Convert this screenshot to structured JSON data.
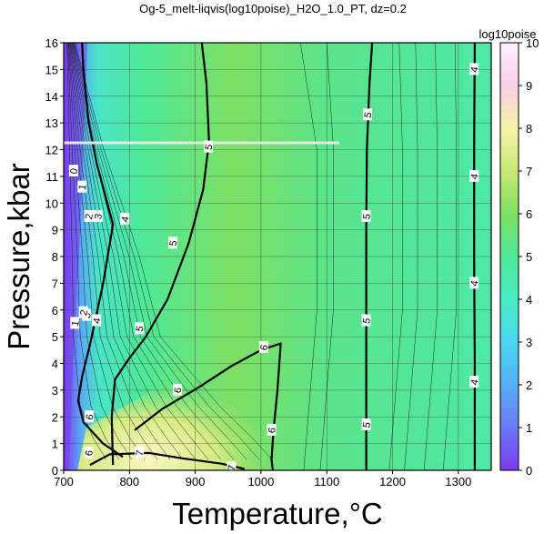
{
  "chart_data": {
    "type": "heatmap",
    "title": "Og-5_melt-liqvis(log10poise)_H2O_1.0_PT, dz=0.2",
    "xlabel": "Temperature,°C",
    "ylabel": "Pressure,kbar",
    "xlim": [
      700,
      1350
    ],
    "ylim": [
      0,
      16
    ],
    "x_ticks": [
      700,
      800,
      900,
      1000,
      1100,
      1200,
      1300
    ],
    "y_ticks": [
      0,
      1,
      2,
      3,
      4,
      5,
      6,
      7,
      8,
      9,
      10,
      11,
      12,
      13,
      14,
      15,
      16
    ],
    "grid": true,
    "colorbar": {
      "label": "log10poise",
      "range": [
        0,
        10
      ],
      "ticks": [
        0,
        1,
        2,
        3,
        4,
        5,
        6,
        7,
        8,
        9,
        10
      ],
      "stops": [
        {
          "value": 0,
          "color": "#7a3cf0"
        },
        {
          "value": 1,
          "color": "#6a7af6"
        },
        {
          "value": 2,
          "color": "#58aef8"
        },
        {
          "value": 3,
          "color": "#4ad6f0"
        },
        {
          "value": 4,
          "color": "#48ecc4"
        },
        {
          "value": 5,
          "color": "#4ee89a"
        },
        {
          "value": 6,
          "color": "#7ee062"
        },
        {
          "value": 7,
          "color": "#c8e878"
        },
        {
          "value": 8,
          "color": "#f6f2aa"
        },
        {
          "value": 9,
          "color": "#f8d0e6"
        },
        {
          "value": 10,
          "color": "#fff0fa"
        }
      ]
    },
    "major_contours": [
      {
        "level": 4,
        "points": [
          [
            1325,
            0
          ],
          [
            1325,
            4
          ],
          [
            1324,
            8
          ],
          [
            1324,
            12
          ],
          [
            1325,
            16
          ]
        ]
      },
      {
        "level": 5,
        "points": [
          [
            1160,
            0
          ],
          [
            1160,
            5
          ],
          [
            1160,
            9
          ],
          [
            1161,
            12
          ],
          [
            1165,
            14.5
          ],
          [
            1169,
            16
          ]
        ]
      },
      {
        "level": 5,
        "points": [
          [
            775,
            0.2
          ],
          [
            773,
            2
          ],
          [
            778,
            3.4
          ],
          [
            800,
            4.2
          ],
          [
            825,
            5
          ],
          [
            858,
            6.4
          ],
          [
            890,
            8.5
          ],
          [
            912,
            10.5
          ],
          [
            921,
            12.3
          ],
          [
            917,
            14.5
          ],
          [
            910,
            16
          ]
        ]
      },
      {
        "level": 6,
        "points": [
          [
            808,
            1.5
          ],
          [
            850,
            2.3
          ],
          [
            905,
            3.1
          ],
          [
            955,
            3.9
          ],
          [
            1000,
            4.5
          ],
          [
            1030,
            4.75
          ],
          [
            1025,
            3
          ],
          [
            1019,
            1.5
          ],
          [
            1016,
            0.4
          ],
          [
            1018,
            0
          ]
        ]
      },
      {
        "level": 6,
        "points": [
          [
            728,
            16
          ],
          [
            730,
            15
          ],
          [
            738,
            13
          ],
          [
            750,
            11.5
          ],
          [
            775,
            9.2
          ],
          [
            760,
            7
          ],
          [
            740,
            4.7
          ],
          [
            728,
            3.5
          ],
          [
            722,
            2.6
          ],
          [
            730,
            1.8
          ],
          [
            760,
            1
          ],
          [
            790,
            0.5
          ]
        ]
      },
      {
        "level": 7,
        "points": [
          [
            740,
            0.2
          ],
          [
            770,
            0.6
          ],
          [
            830,
            0.65
          ],
          [
            880,
            0.45
          ],
          [
            940,
            0.25
          ],
          [
            975,
            0.05
          ]
        ]
      }
    ],
    "contour_labels": [
      {
        "value": "4",
        "x": 1324,
        "y": 15
      },
      {
        "value": "4",
        "x": 1324,
        "y": 11
      },
      {
        "value": "4",
        "x": 1324,
        "y": 7
      },
      {
        "value": "4",
        "x": 1324,
        "y": 3.3
      },
      {
        "value": "5",
        "x": 1162,
        "y": 13.3
      },
      {
        "value": "5",
        "x": 1160,
        "y": 9.5
      },
      {
        "value": "5",
        "x": 1160,
        "y": 5.6
      },
      {
        "value": "5",
        "x": 1160,
        "y": 1.7
      },
      {
        "value": "5",
        "x": 920,
        "y": 12.1
      },
      {
        "value": "5",
        "x": 866,
        "y": 8.5
      },
      {
        "value": "5",
        "x": 815,
        "y": 5.3
      },
      {
        "value": "6",
        "x": 1004,
        "y": 4.6
      },
      {
        "value": "6",
        "x": 1016,
        "y": 1.5
      },
      {
        "value": "6",
        "x": 873,
        "y": 3.0
      },
      {
        "value": "4",
        "x": 793,
        "y": 9.4
      },
      {
        "value": "4",
        "x": 750,
        "y": 5.6
      },
      {
        "value": "7",
        "x": 815,
        "y": 0.65
      },
      {
        "value": "7",
        "x": 955,
        "y": 0.1
      },
      {
        "value": "0",
        "x": 715,
        "y": 11.2
      },
      {
        "value": "1",
        "x": 728,
        "y": 10.6
      },
      {
        "value": "2",
        "x": 738,
        "y": 9.5
      },
      {
        "value": "3",
        "x": 752,
        "y": 9.5
      },
      {
        "value": "3",
        "x": 735,
        "y": 5.8
      },
      {
        "value": "2",
        "x": 730,
        "y": 5.9
      },
      {
        "value": "1",
        "x": 717,
        "y": 5.5
      },
      {
        "value": "6",
        "x": 739,
        "y": 2.0
      },
      {
        "value": "6",
        "x": 738,
        "y": 0.65
      }
    ]
  }
}
